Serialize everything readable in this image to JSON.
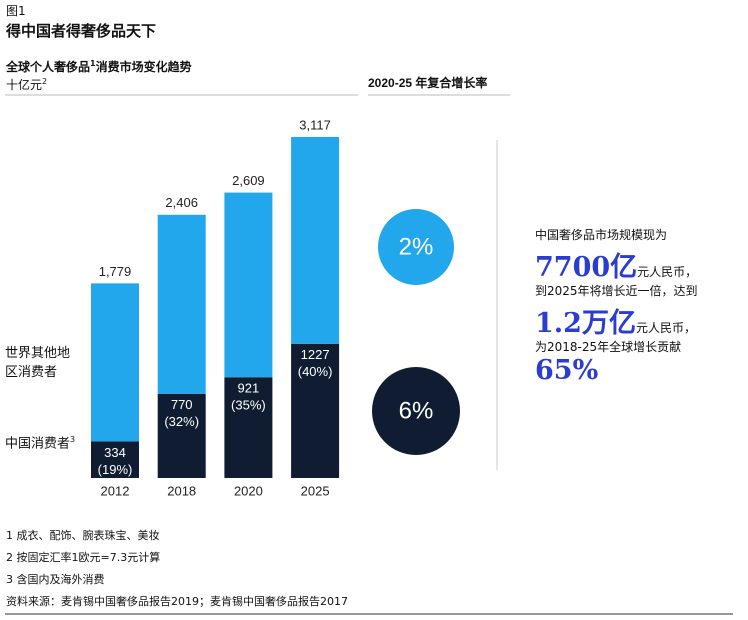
{
  "figure_label": "图1",
  "chart_data": {
    "type": "bar",
    "stacked": true,
    "title": "得中国者得奢侈品天下",
    "subtitle": [
      "全球个人奢侈品",
      "1",
      "消费市场变化趋势"
    ],
    "unit": [
      "十亿元",
      "2"
    ],
    "cagr_title": "2020-25 年复合增长率",
    "categories": [
      "2012",
      "2018",
      "2020",
      "2025"
    ],
    "totals": [
      1779,
      2406,
      2609,
      3117
    ],
    "total_labels": [
      "1,779",
      "2,406",
      "2,609",
      "3,117"
    ],
    "series": [
      {
        "name": "中国消费者",
        "note": "3",
        "color": "#0f1c32",
        "values": [
          334,
          770,
          921,
          1227
        ],
        "shares": [
          19,
          32,
          35,
          40
        ],
        "share_labels": [
          "(19%)",
          "(32%)",
          "(35%)",
          "(40%)"
        ],
        "cagr": 6,
        "cagr_label": "6%"
      },
      {
        "name": "世界其他地区消费者",
        "color": "#22a7ec",
        "values": [
          1445,
          1636,
          1688,
          1890
        ],
        "cagr": 2,
        "cagr_label": "2%"
      }
    ]
  },
  "callout": [
    "中国奢侈品市场规模现为",
    "7700亿",
    "元人民币，",
    "到2025年将增长近一倍，达到",
    "1.2万亿",
    "元人民币，",
    "为2018-25年全球增长贡献",
    "65%"
  ],
  "footnotes": [
    "1 成衣、配饰、腕表珠宝、美妆",
    "2 按固定汇率1欧元=7.3元计算",
    "3 含国内及海外消费",
    "资料来源：麦肯锡中国奢侈品报告2019；麦肯锡中国奢侈品报告2017"
  ]
}
